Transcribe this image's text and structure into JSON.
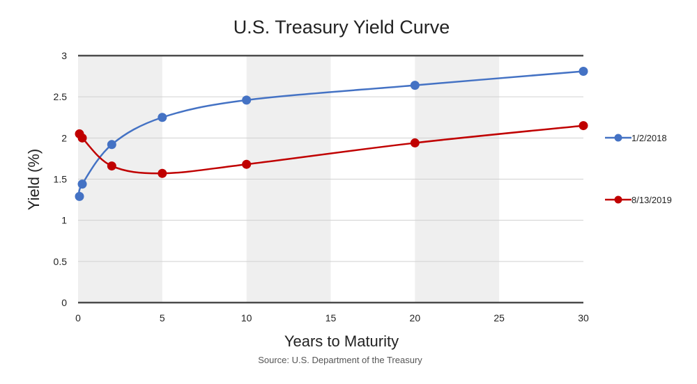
{
  "chart_data": {
    "type": "line",
    "title": "U.S. Treasury Yield Curve",
    "xlabel": "Years to Maturity",
    "ylabel": "Yield (%)",
    "source": "Source: U.S. Department of the Treasury",
    "xlim": [
      0,
      30
    ],
    "ylim": [
      0,
      3
    ],
    "x_ticks": [
      0,
      5,
      10,
      15,
      20,
      25,
      30
    ],
    "y_ticks": [
      0,
      0.5,
      1,
      1.5,
      2,
      2.5,
      3
    ],
    "x_tick_labels": [
      "0",
      "5",
      "10",
      "15",
      "20",
      "25",
      "30"
    ],
    "y_tick_labels": [
      "0",
      "0.5",
      "1",
      "1.5",
      "2",
      "2.5",
      "3"
    ],
    "shaded_bands": [
      [
        0,
        5
      ],
      [
        10,
        15
      ],
      [
        20,
        25
      ]
    ],
    "grid": true,
    "legend_position": "right",
    "series": [
      {
        "name": "1/2/2018",
        "color": "#4472C4",
        "x": [
          0.083,
          0.25,
          2,
          5,
          10,
          20,
          30
        ],
        "y": [
          1.29,
          1.44,
          1.92,
          2.25,
          2.46,
          2.64,
          2.81
        ]
      },
      {
        "name": "8/13/2019",
        "color": "#C00000",
        "x": [
          0.083,
          0.25,
          2,
          5,
          10,
          20,
          30
        ],
        "y": [
          2.05,
          2.0,
          1.66,
          1.57,
          1.68,
          1.94,
          2.15
        ]
      }
    ]
  }
}
